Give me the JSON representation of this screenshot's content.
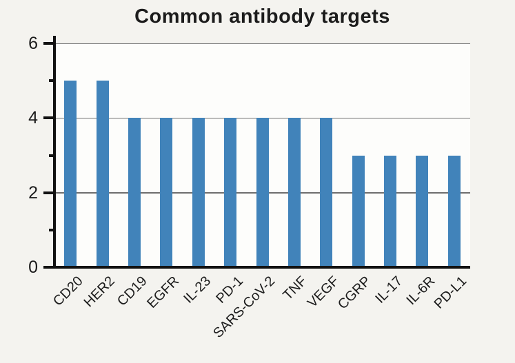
{
  "chart_data": {
    "type": "bar",
    "title": "Common antibody targets",
    "categories": [
      "CD20",
      "HER2",
      "CD19",
      "EGFR",
      "IL-23",
      "PD-1",
      "SARS-CoV-2",
      "TNF",
      "VEGF",
      "CGRP",
      "IL-17",
      "IL-6R",
      "PD-L1"
    ],
    "values": [
      5,
      5,
      4,
      4,
      4,
      4,
      4,
      4,
      4,
      3,
      3,
      3,
      3
    ],
    "xlabel": "",
    "ylabel": "",
    "ylim": [
      0,
      6
    ],
    "ytick_major": [
      0,
      2,
      4,
      6
    ],
    "ytick_labels": [
      "0",
      "2",
      "4",
      "6"
    ],
    "ytick_minor": [
      1,
      3,
      5
    ],
    "grid_values": [
      2,
      4,
      6
    ],
    "grid": "horizontal",
    "legend": "none"
  },
  "colors": {
    "bar": "#4183ba",
    "background": "#f4f3ef",
    "plot_background": "#fdfdfb",
    "gridline": "#6e6e6e",
    "axis": "#121212",
    "text": "#1c1c1c"
  }
}
